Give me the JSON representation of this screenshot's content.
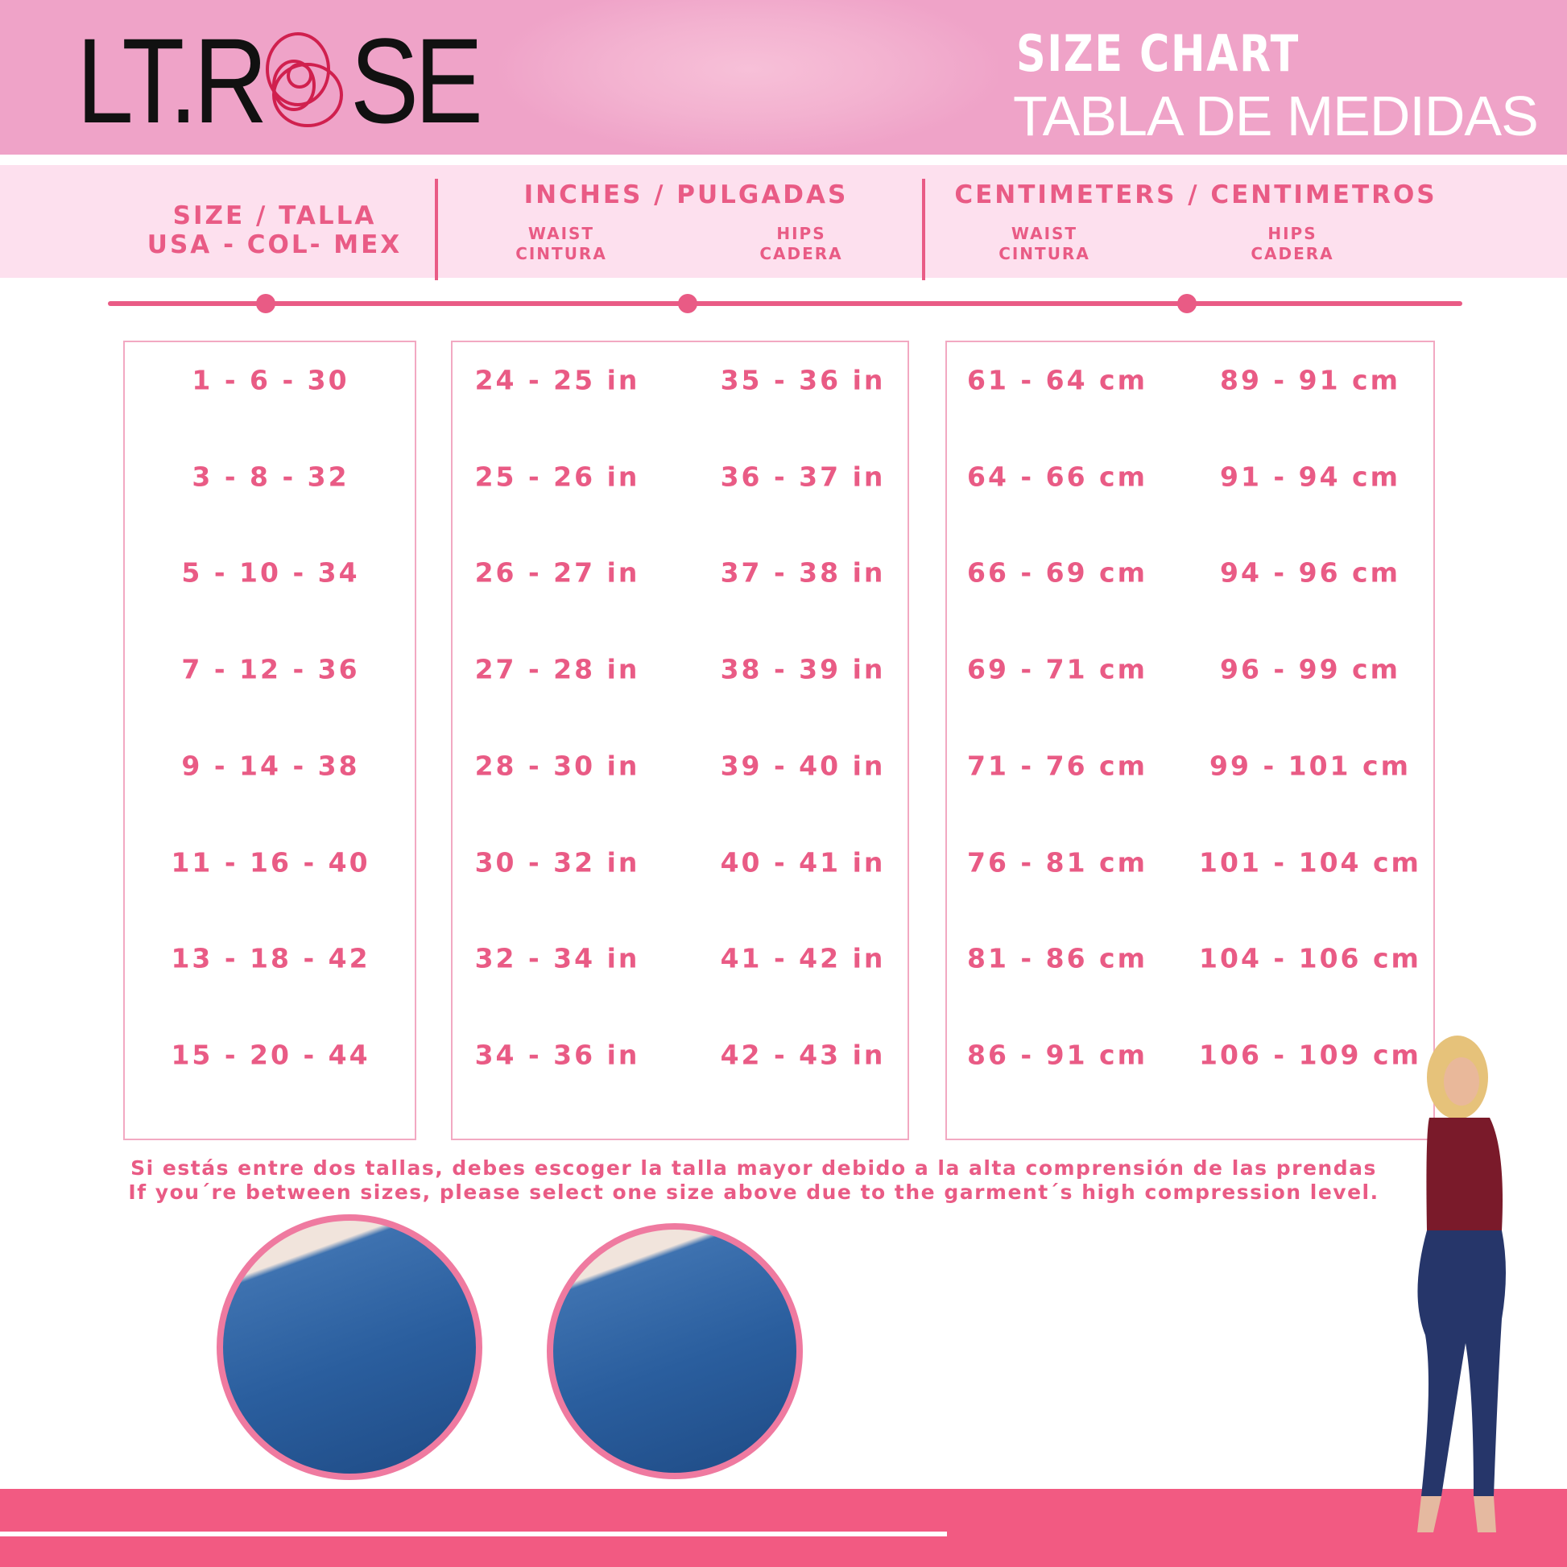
{
  "header": {
    "brand": "LT.ROSE",
    "brand_left": "LT.R",
    "brand_right": "SE",
    "title": "SIZE CHART",
    "subtitle": "TABLA DE MEDIDAS"
  },
  "columns": {
    "size": {
      "line1": "SIZE / TALLA",
      "line2": "USA - COL- MEX"
    },
    "inches": {
      "title": "INCHES / PULGADAS",
      "waist": "WAIST",
      "waist_es": "CINTURA",
      "hips": "HIPS",
      "hips_es": "CADERA"
    },
    "cm": {
      "title": "CENTIMETERS / CENTIMETROS",
      "waist": "WAIST",
      "waist_es": "CINTURA",
      "hips": "HIPS",
      "hips_es": "CADERA"
    }
  },
  "rows": [
    {
      "size": "1 - 6 - 30",
      "in_waist": "24 - 25 in",
      "in_hips": "35 - 36 in",
      "cm_waist": "61 - 64 cm",
      "cm_hips": "89 - 91 cm"
    },
    {
      "size": "3 - 8 - 32",
      "in_waist": "25 - 26 in",
      "in_hips": "36 - 37 in",
      "cm_waist": "64 - 66 cm",
      "cm_hips": "91 - 94 cm"
    },
    {
      "size": "5 - 10 - 34",
      "in_waist": "26 - 27 in",
      "in_hips": "37 - 38 in",
      "cm_waist": "66 - 69 cm",
      "cm_hips": "94 - 96 cm"
    },
    {
      "size": "7 - 12 - 36",
      "in_waist": "27 - 28 in",
      "in_hips": "38 - 39 in",
      "cm_waist": "69 - 71 cm",
      "cm_hips": "96 - 99 cm"
    },
    {
      "size": "9 - 14 - 38",
      "in_waist": "28 - 30 in",
      "in_hips": "39 - 40 in",
      "cm_waist": "71 - 76 cm",
      "cm_hips": "99 - 101 cm"
    },
    {
      "size": "11 - 16 - 40",
      "in_waist": "30 - 32 in",
      "in_hips": "40 - 41 in",
      "cm_waist": "76 - 81 cm",
      "cm_hips": "101 - 104 cm"
    },
    {
      "size": "13 - 18 - 42",
      "in_waist": "32 - 34 in",
      "in_hips": "41 - 42 in",
      "cm_waist": "81 - 86 cm",
      "cm_hips": "104 - 106 cm"
    },
    {
      "size": "15 - 20 - 44",
      "in_waist": "34 - 36 in",
      "in_hips": "42 - 43 in",
      "cm_waist": "86 - 91 cm",
      "cm_hips": "106 - 109 cm"
    }
  ],
  "note": {
    "es": "Si estás entre dos tallas, debes escoger la talla mayor debido a la alta comprensión de las prendas",
    "en": "If you´re between sizes, please select one size above due to the garment´s high compression level."
  },
  "colors": {
    "accent": "#e95b85",
    "header_bg": "#efa3c8",
    "colhead_bg": "#fde0ee",
    "bottom_band": "#f25a82"
  }
}
